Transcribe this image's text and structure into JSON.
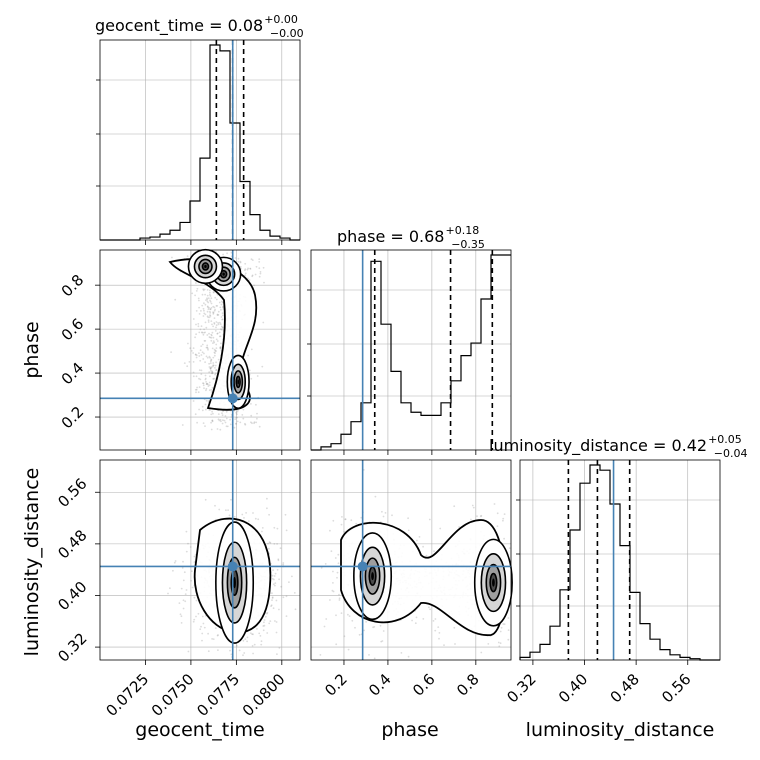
{
  "colors": {
    "truth": "#4682b4",
    "line": "#000000",
    "grid": "#b0b0b0",
    "cloud": "#9a9a9a"
  },
  "chart_data": {
    "type": "corner",
    "parameters": [
      "geocent_time",
      "phase",
      "luminosity_distance"
    ],
    "truths": {
      "geocent_time": 0.0773,
      "phase": 0.285,
      "luminosity_distance": 0.445
    },
    "ranges": {
      "geocent_time": [
        0.07,
        0.081
      ],
      "phase": [
        0.05,
        0.96
      ],
      "luminosity_distance": [
        0.3,
        0.61
      ]
    },
    "ticks": {
      "geocent_time": {
        "values": [
          0.0725,
          0.075,
          0.0775,
          0.08
        ],
        "labels": [
          "0.0725",
          "0.0750",
          "0.0775",
          "0.0800"
        ]
      },
      "phase": {
        "values": [
          0.2,
          0.4,
          0.6,
          0.8
        ],
        "labels": [
          "0.2",
          "0.4",
          "0.6",
          "0.8"
        ]
      },
      "luminosity_distance": {
        "values": [
          0.32,
          0.4,
          0.48,
          0.56
        ],
        "labels": [
          "0.32",
          "0.40",
          "0.48",
          "0.56"
        ]
      }
    },
    "titles": [
      {
        "param": "geocent_time",
        "text": "geocent_time = 0.08",
        "plus": "+0.00",
        "minus": "−0.00"
      },
      {
        "param": "phase",
        "text": "phase = 0.68",
        "plus": "+0.18",
        "minus": "−0.35"
      },
      {
        "param": "luminosity_distance",
        "text": "luminosity_distance = 0.42",
        "plus": "+0.05",
        "minus": "−0.04"
      }
    ],
    "axis_labels": {
      "geocent_time": "geocent_time",
      "phase": "phase",
      "luminosity_distance": "luminosity_distance"
    },
    "quantiles": {
      "geocent_time": [
        0.0764,
        0.0773,
        0.0779
      ],
      "phase": [
        0.34,
        0.685,
        0.875
      ],
      "luminosity_distance": [
        0.375,
        0.42,
        0.47
      ]
    },
    "histograms": {
      "geocent_time": {
        "edges_start": 0.07,
        "bin_width": 0.00055,
        "counts": [
          0,
          0,
          0,
          0,
          1,
          1.5,
          3,
          5,
          9,
          20,
          42,
          100,
          97,
          60,
          30,
          13,
          5,
          2,
          1,
          0
        ]
      },
      "phase": {
        "edges_start": 0.05,
        "bin_width": 0.0455,
        "counts": [
          0,
          1,
          2,
          5,
          9,
          15,
          60,
          40,
          25,
          15,
          12,
          11,
          11,
          15,
          22,
          30,
          34,
          48,
          62,
          62
        ]
      },
      "luminosity_distance": {
        "edges_start": 0.3,
        "bin_width": 0.0155,
        "counts": [
          1,
          3,
          6,
          13,
          27,
          50,
          68,
          75,
          73,
          60,
          44,
          26,
          14,
          8,
          4,
          2,
          1,
          0.5,
          0,
          0
        ]
      }
    },
    "density_modes": [
      {
        "x": "geocent_time",
        "y": "phase",
        "centers": [
          [
            0.0768,
            0.85
          ],
          [
            0.0758,
            0.885
          ],
          [
            0.0776,
            0.36
          ]
        ]
      },
      {
        "x": "geocent_time",
        "y": "luminosity_distance",
        "centers": [
          [
            0.0774,
            0.42
          ]
        ]
      },
      {
        "x": "phase",
        "y": "luminosity_distance",
        "centers": [
          [
            0.33,
            0.43
          ],
          [
            0.88,
            0.42
          ]
        ]
      }
    ],
    "grid": true
  }
}
